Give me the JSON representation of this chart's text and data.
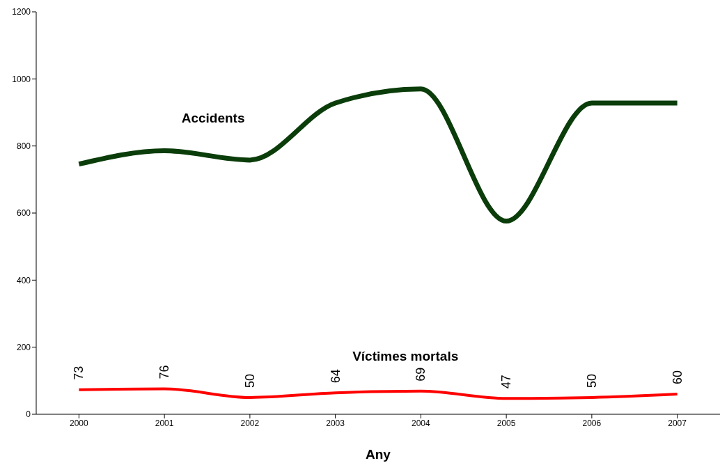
{
  "chart_data": {
    "type": "line",
    "xlabel": "Any",
    "categories": [
      "2000",
      "2001",
      "2002",
      "2003",
      "2004",
      "2005",
      "2006",
      "2007"
    ],
    "series": [
      {
        "name": "Accidents",
        "color": "#0b3d0b",
        "values": [
          746,
          786,
          758,
          928,
          970,
          576,
          928,
          928
        ]
      },
      {
        "name": "Víctimes mortals",
        "color": "#ff0000",
        "values": [
          73,
          76,
          50,
          64,
          69,
          47,
          50,
          60
        ],
        "data_labels": true
      }
    ],
    "ylim": [
      0,
      1200
    ],
    "yticks": [
      0,
      200,
      400,
      600,
      800,
      1000,
      1200
    ],
    "marker": "none",
    "line_style": "solid"
  }
}
